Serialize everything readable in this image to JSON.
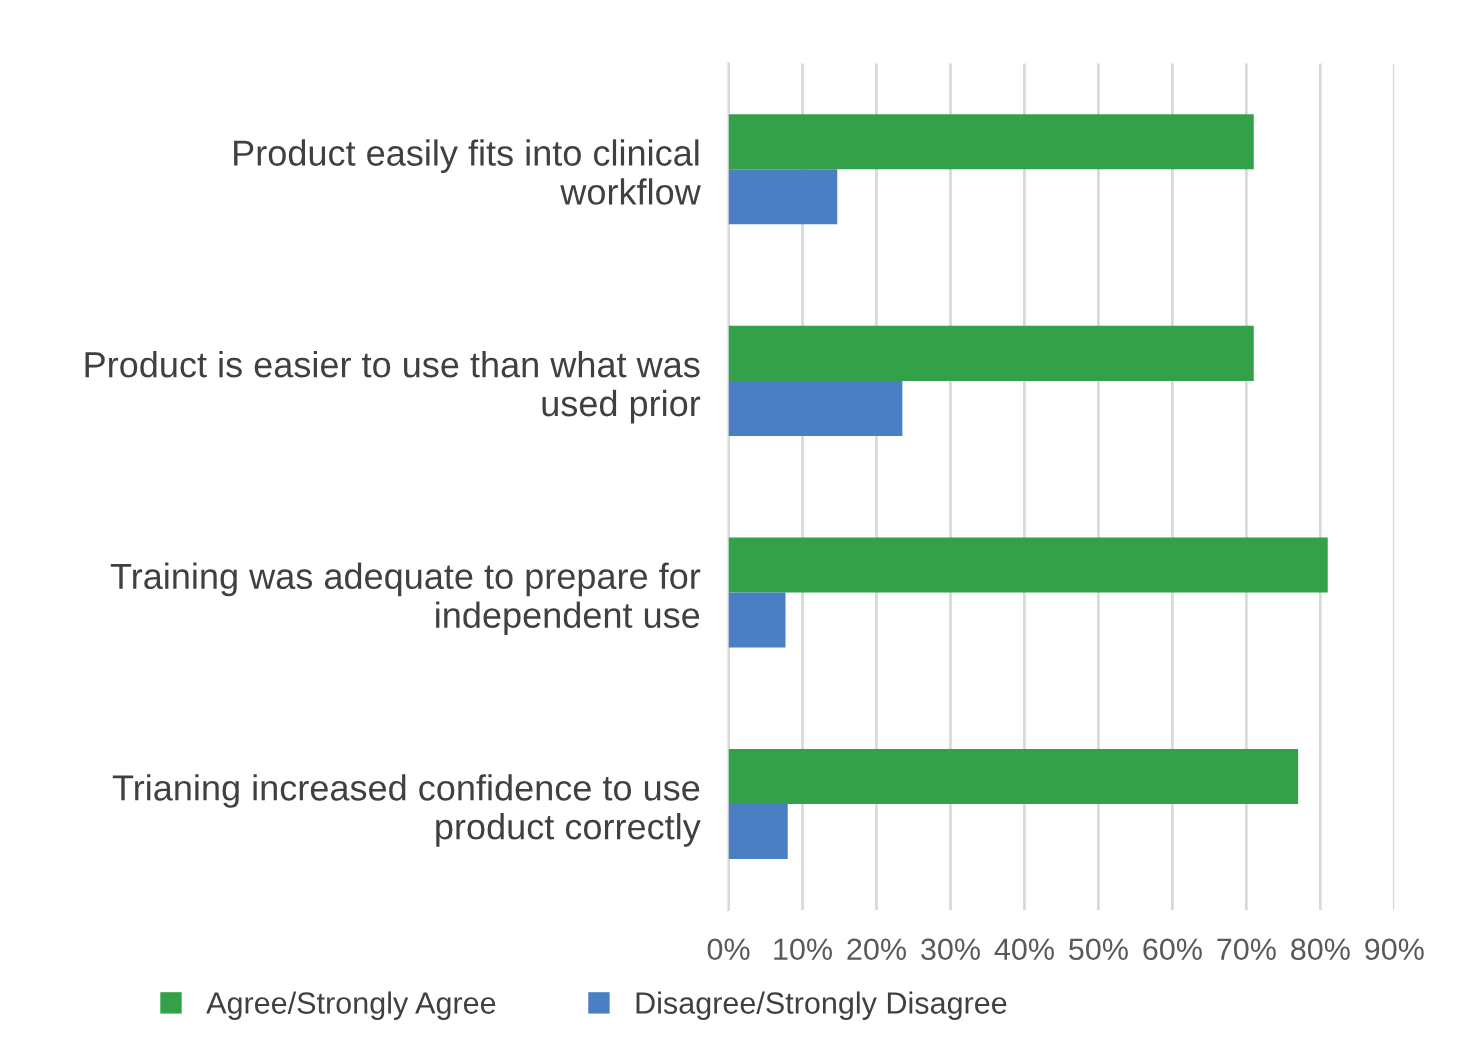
{
  "chart_data": {
    "type": "bar",
    "orientation": "horizontal",
    "categories": [
      "Product easily fits into clinical\nworkflow",
      "Product is easier to use than what was\nused prior",
      "Training was adequate to prepare for\nindependent use",
      "Trianing increased confidence to use\nproduct correctly"
    ],
    "series": [
      {
        "name": "Agree/Strongly Agree",
        "color": "#33a04a",
        "values": [
          71,
          71,
          81,
          77
        ]
      },
      {
        "name": "Disagree/Strongly Disagree",
        "color": "#4a7fc4",
        "values": [
          14.7,
          23.5,
          7.7,
          8
        ]
      }
    ],
    "xlim": [
      0,
      90
    ],
    "xticks": [
      {
        "value": 0,
        "label": "0%"
      },
      {
        "value": 10,
        "label": "10%"
      },
      {
        "value": 20,
        "label": "20%"
      },
      {
        "value": 30,
        "label": "30%"
      },
      {
        "value": 40,
        "label": "40%"
      },
      {
        "value": 50,
        "label": "50%"
      },
      {
        "value": 60,
        "label": "60%"
      },
      {
        "value": 70,
        "label": "70%"
      },
      {
        "value": 80,
        "label": "80%"
      },
      {
        "value": 90,
        "label": "90%"
      }
    ],
    "grid": "x",
    "legend": "bottom"
  }
}
